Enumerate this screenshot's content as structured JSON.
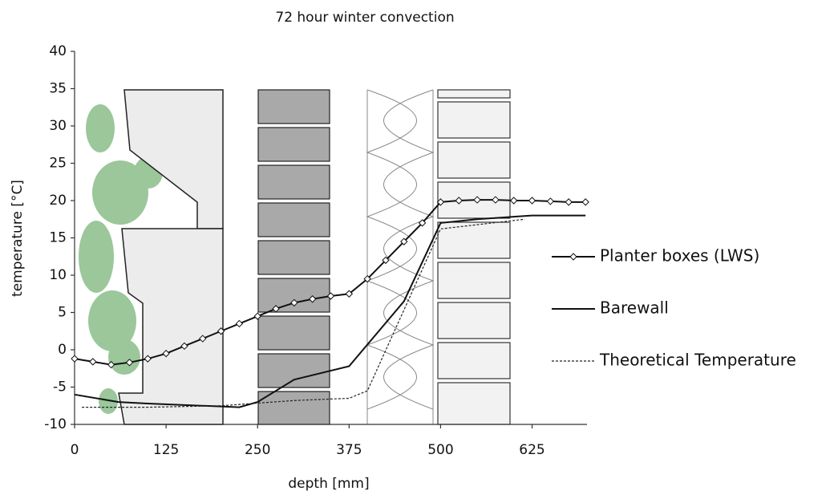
{
  "chart_data": {
    "type": "line",
    "title": "72 hour winter convection",
    "x_label": "depth [mm]",
    "y_label": "temperature [°C]",
    "xlim": [
      0,
      700
    ],
    "xticks": [
      0,
      125,
      250,
      375,
      500,
      625
    ],
    "ylim": [
      -10,
      40
    ],
    "yticks": [
      -10,
      -5,
      0,
      5,
      10,
      15,
      20,
      25,
      30,
      35,
      40
    ],
    "series": [
      {
        "name": "Planter boxes (LWS)",
        "color": "#111111",
        "marker": "diamond",
        "dash": "solid",
        "x": [
          0,
          25,
          50,
          75,
          100,
          125,
          150,
          175,
          200,
          225,
          250,
          275,
          300,
          325,
          350,
          375,
          400,
          425,
          450,
          475,
          500,
          525,
          550,
          575,
          600,
          625,
          650,
          675,
          698
        ],
        "values": [
          -1.2,
          -1.6,
          -2,
          -1.7,
          -1.2,
          -0.5,
          0.5,
          1.5,
          2.5,
          3.5,
          4.5,
          5.5,
          6.3,
          6.8,
          7.2,
          7.5,
          9.5,
          12,
          14.5,
          17,
          19.8,
          20,
          20.1,
          20.1,
          20,
          20,
          19.9,
          19.8,
          19.8
        ]
      },
      {
        "name": "Barewall",
        "color": "#111111",
        "marker": "none",
        "dash": "solid",
        "x": [
          0,
          60,
          100,
          150,
          200,
          225,
          250,
          300,
          375,
          450,
          500,
          550,
          625,
          698
        ],
        "values": [
          -6,
          -7,
          -7.2,
          -7.4,
          -7.6,
          -7.7,
          -7,
          -4,
          -2.2,
          6.5,
          17,
          17.5,
          18,
          18
        ]
      },
      {
        "name": "Theoretical Temperature",
        "color": "#222222",
        "marker": "none",
        "dash": "dashed",
        "x": [
          10,
          100,
          200,
          300,
          375,
          400,
          500,
          615
        ],
        "values": [
          -7.7,
          -7.7,
          -7.5,
          -6.8,
          -6.5,
          -5.5,
          16.2,
          17.5
        ]
      }
    ]
  }
}
